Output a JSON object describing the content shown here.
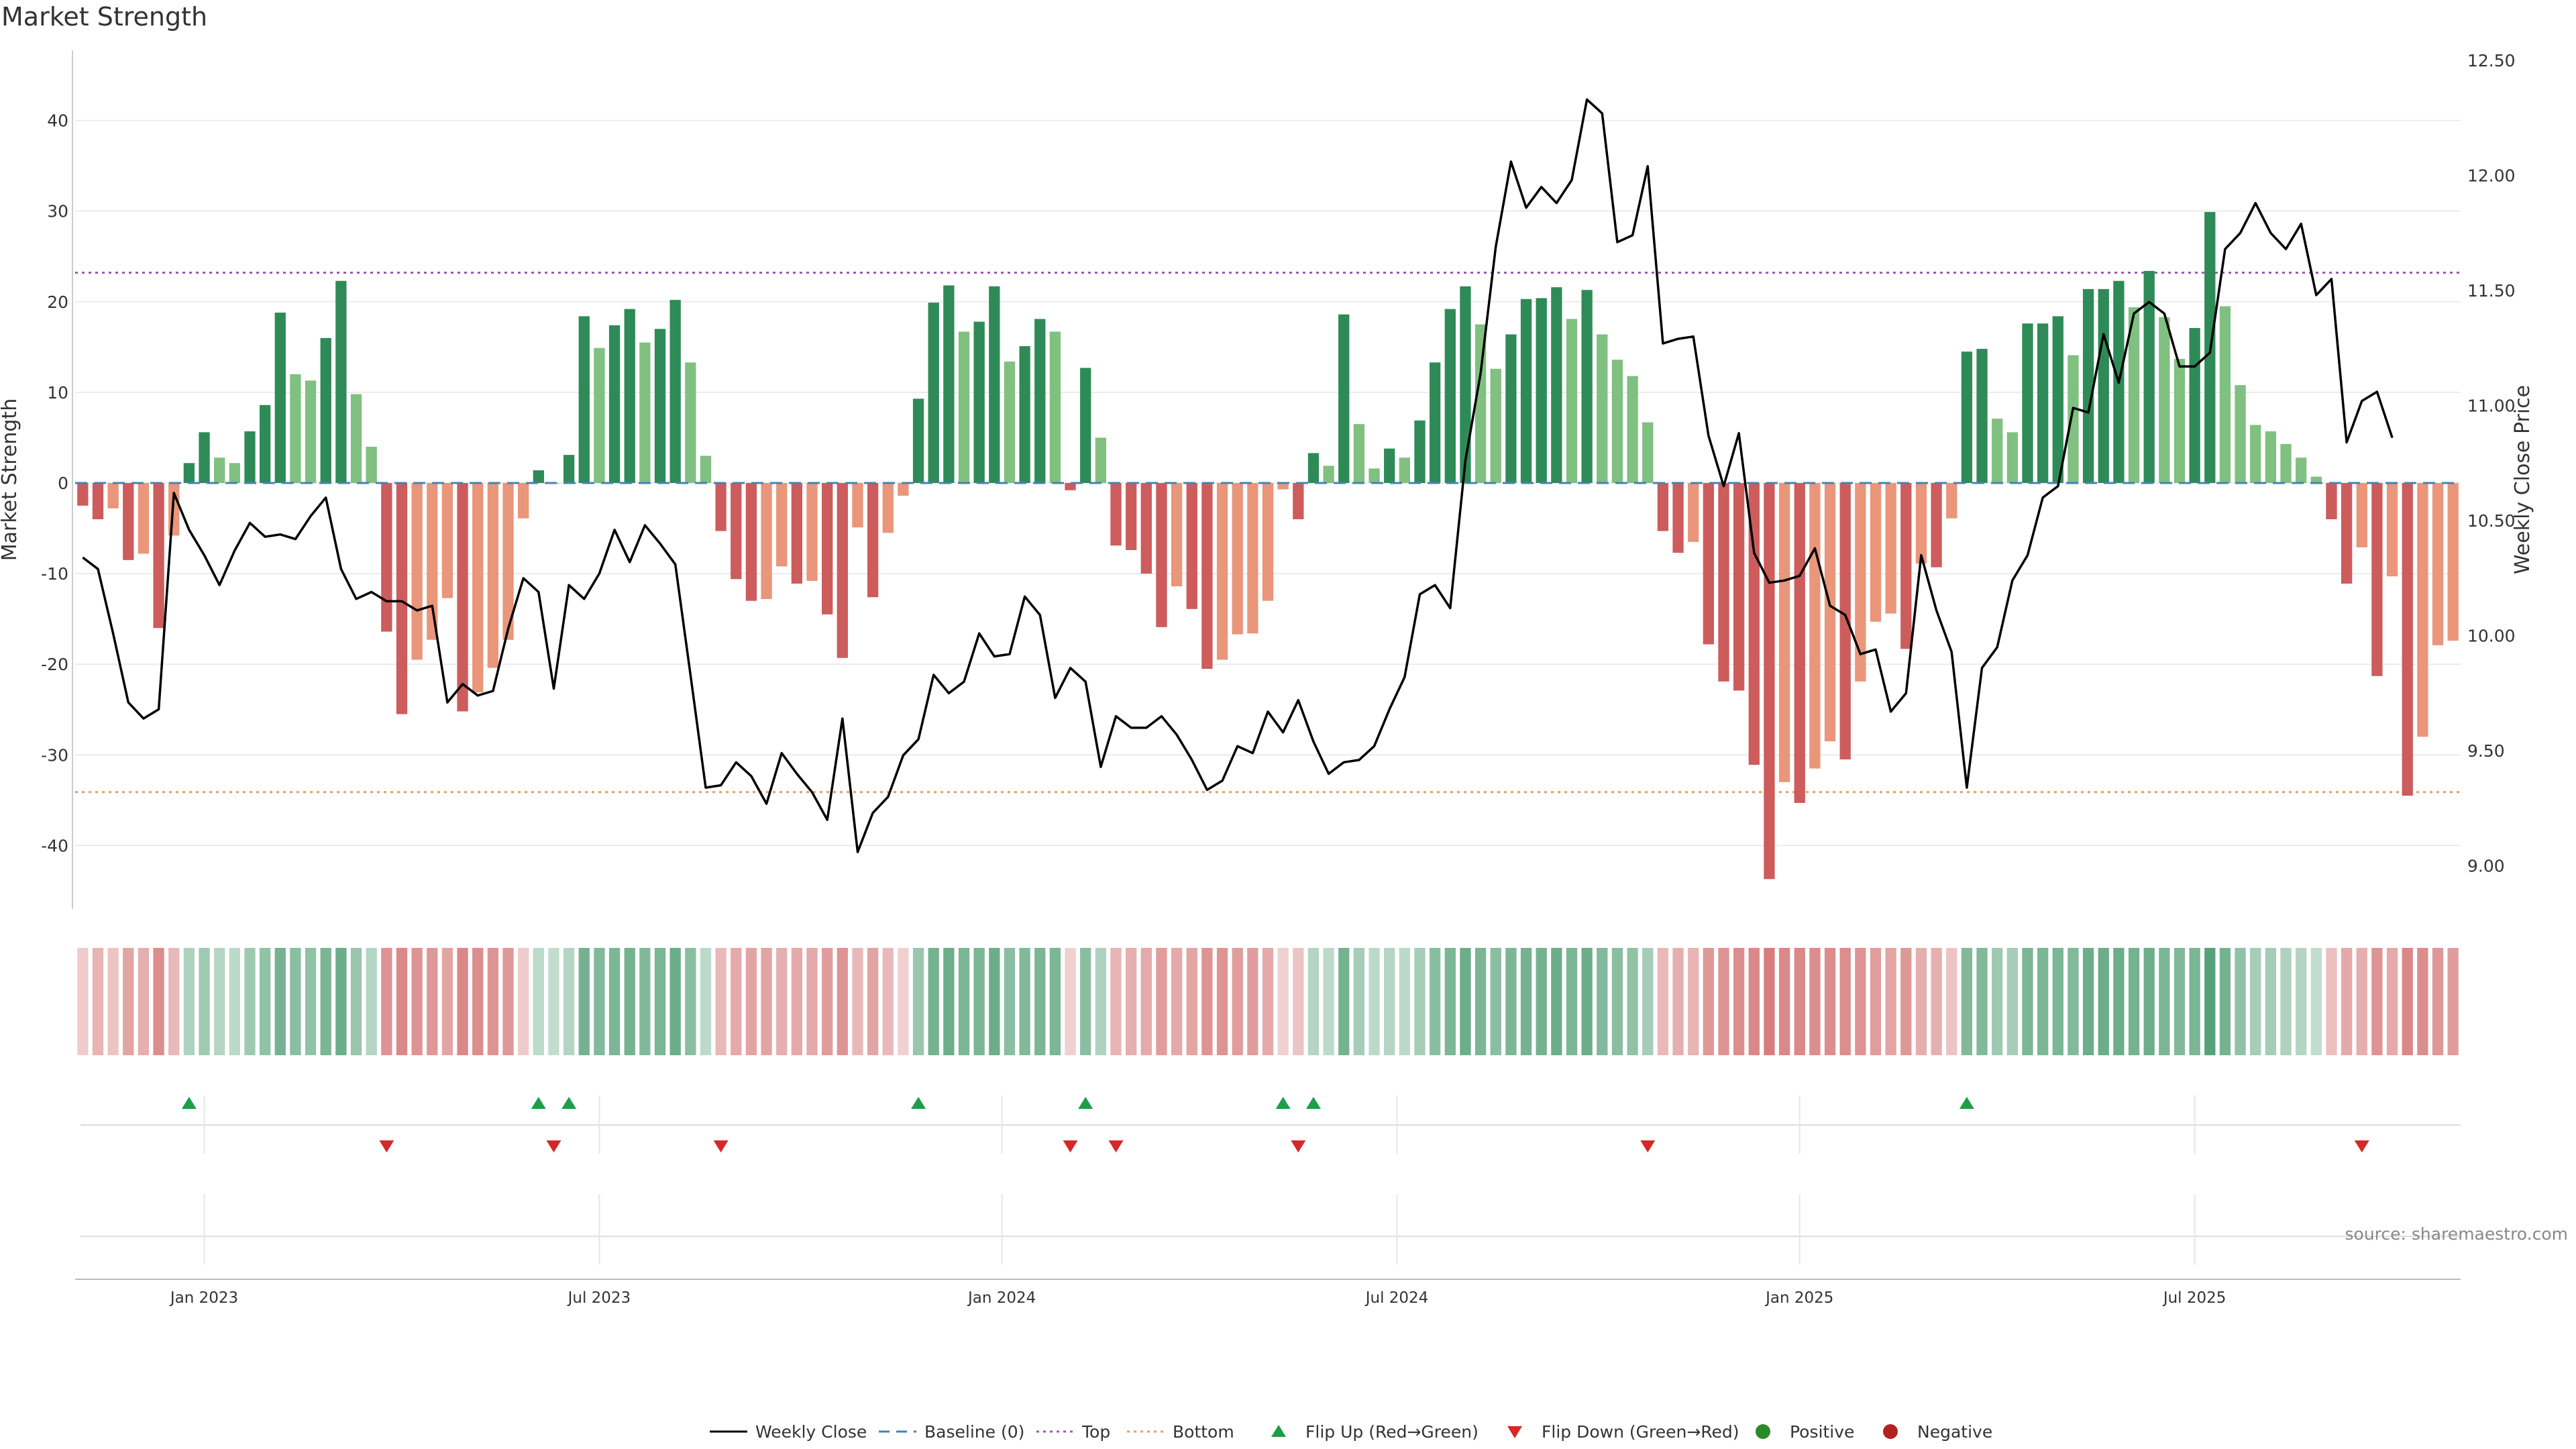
{
  "chart_data": {
    "type": "bar",
    "title": "Market Strength",
    "ylabel": "Market Strength",
    "ylabel_right": "Weekly Close Price",
    "ylim": [
      -47,
      47
    ],
    "ylim_right": [
      8.9,
      12.5
    ],
    "yticks": [
      40,
      30,
      20,
      10,
      0,
      -10,
      -20,
      -30,
      -40
    ],
    "yticks_right": [
      12.5,
      12.0,
      11.5,
      11.0,
      10.5,
      10.0,
      9.5,
      9.0
    ],
    "ytick_labels_right": [
      "12.50",
      "12.00",
      "11.50",
      "11.00",
      "10.50",
      "10.00",
      "9.50",
      "9.00"
    ],
    "top_threshold": 23.2,
    "bottom_threshold": -34.1,
    "x_ticks": [
      {
        "label": "Jan 2023",
        "week": 8.5
      },
      {
        "label": "Jul 2023",
        "week": 34.5
      },
      {
        "label": "Jan 2024",
        "week": 61
      },
      {
        "label": "Jul 2024",
        "week": 87
      },
      {
        "label": "Jan 2025",
        "week": 113.5
      },
      {
        "label": "Jul 2025",
        "week": 139.5
      }
    ],
    "strength_values": [
      -2.5,
      -4,
      -2.8,
      -8.5,
      -7.8,
      -16,
      -5.8,
      2.2,
      5.6,
      2.8,
      2.2,
      5.7,
      8.6,
      18.8,
      12,
      11.3,
      16,
      22.3,
      9.8,
      4,
      -16.4,
      -25.5,
      -19.5,
      -17.3,
      -12.7,
      -25.2,
      -23.1,
      -20.4,
      -17.3,
      -3.9,
      1.4,
      0,
      3.1,
      18.4,
      14.9,
      17.4,
      19.2,
      15.5,
      17,
      20.2,
      13.3,
      3,
      -5.3,
      -10.6,
      -13,
      -12.8,
      -9.2,
      -11.1,
      -10.8,
      -14.5,
      -19.3,
      -4.9,
      -12.6,
      -5.5,
      -1.4,
      9.3,
      19.9,
      21.8,
      16.7,
      17.8,
      21.7,
      13.4,
      15.1,
      18.1,
      16.7,
      -0.8,
      12.7,
      5,
      -6.9,
      -7.4,
      -10,
      -15.9,
      -11.4,
      -13.9,
      -20.5,
      -19.5,
      -16.7,
      -16.6,
      -13,
      -0.7,
      -4,
      3.3,
      1.9,
      18.6,
      6.5,
      1.6,
      3.8,
      2.8,
      6.9,
      13.3,
      19.2,
      21.7,
      17.5,
      12.6,
      16.4,
      20.3,
      20.4,
      21.6,
      18.1,
      21.3,
      16.4,
      13.6,
      11.8,
      6.7,
      -5.3,
      -7.7,
      -6.5,
      -17.8,
      -21.9,
      -22.9,
      -31.1,
      -43.7,
      -33,
      -35.3,
      -31.5,
      -28.5,
      -30.5,
      -21.9,
      -15.3,
      -14.4,
      -18.3,
      -8.9,
      -9.3,
      -3.9,
      14.5,
      14.8,
      7.1,
      5.6,
      17.6,
      17.6,
      18.4,
      14.1,
      21.4,
      21.4,
      22.3,
      19.4,
      23.4,
      18.3,
      13.7,
      17.1,
      29.9,
      19.5,
      10.8,
      6.4,
      5.7,
      4.3,
      2.8,
      0.7,
      -4,
      -11.1,
      -7.1,
      -21.3,
      -10.3,
      -34.5,
      -28,
      -17.9,
      -17.4
    ],
    "close_prices": [
      10.34,
      10.29,
      10.01,
      9.71,
      9.64,
      9.68,
      10.62,
      10.46,
      10.35,
      10.22,
      10.37,
      10.49,
      10.43,
      10.44,
      10.42,
      10.52,
      10.6,
      10.29,
      10.16,
      10.19,
      10.15,
      10.15,
      10.11,
      10.13,
      9.71,
      9.79,
      9.74,
      9.76,
      10.03,
      10.25,
      10.19,
      9.77,
      10.22,
      10.16,
      10.27,
      10.46,
      10.32,
      10.48,
      10.4,
      10.31,
      9.83,
      9.34,
      9.35,
      9.45,
      9.39,
      9.27,
      9.49,
      9.4,
      9.32,
      9.2,
      9.64,
      9.06,
      9.23,
      9.3,
      9.48,
      9.55,
      9.83,
      9.75,
      9.8,
      10.01,
      9.91,
      9.92,
      10.17,
      10.09,
      9.73,
      9.86,
      9.8,
      9.43,
      9.65,
      9.6,
      9.6,
      9.65,
      9.57,
      9.46,
      9.33,
      9.37,
      9.52,
      9.49,
      9.67,
      9.58,
      9.72,
      9.54,
      9.4,
      9.45,
      9.46,
      9.52,
      9.68,
      9.82,
      10.18,
      10.22,
      10.12,
      10.76,
      11.14,
      11.69,
      12.06,
      11.86,
      11.95,
      11.88,
      11.98,
      12.33,
      12.27,
      11.71,
      11.74,
      12.04,
      11.27,
      11.29,
      11.3,
      10.87,
      10.65,
      10.88,
      10.36,
      10.23,
      10.24,
      10.26,
      10.38,
      10.13,
      10.09,
      9.92,
      9.94,
      9.67,
      9.75,
      10.35,
      10.11,
      9.93,
      9.34,
      9.86,
      9.95,
      10.24,
      10.35,
      10.6,
      10.65,
      10.99,
      10.97,
      11.31,
      11.1,
      11.4,
      11.45,
      11.4,
      11.17,
      11.17,
      11.23,
      11.68,
      11.75,
      11.88,
      11.75,
      11.68,
      11.79,
      11.48,
      11.55,
      10.84,
      11.02,
      11.06,
      10.86
    ],
    "heat_intensity": [
      0.3,
      0.5,
      0.35,
      0.65,
      0.55,
      0.85,
      0.45,
      0.4,
      0.5,
      0.35,
      0.3,
      0.5,
      0.6,
      0.8,
      0.65,
      0.6,
      0.75,
      0.85,
      0.55,
      0.35,
      0.8,
      0.9,
      0.8,
      0.75,
      0.65,
      0.9,
      0.85,
      0.8,
      0.75,
      0.3,
      0.3,
      0.25,
      0.35,
      0.8,
      0.7,
      0.75,
      0.8,
      0.7,
      0.75,
      0.85,
      0.65,
      0.3,
      0.45,
      0.6,
      0.65,
      0.65,
      0.55,
      0.6,
      0.6,
      0.7,
      0.8,
      0.45,
      0.65,
      0.45,
      0.25,
      0.55,
      0.8,
      0.85,
      0.75,
      0.75,
      0.85,
      0.65,
      0.7,
      0.75,
      0.75,
      0.25,
      0.65,
      0.4,
      0.5,
      0.55,
      0.6,
      0.7,
      0.6,
      0.65,
      0.8,
      0.8,
      0.7,
      0.7,
      0.6,
      0.25,
      0.35,
      0.35,
      0.3,
      0.8,
      0.45,
      0.3,
      0.35,
      0.3,
      0.45,
      0.65,
      0.75,
      0.85,
      0.75,
      0.65,
      0.75,
      0.8,
      0.8,
      0.85,
      0.75,
      0.85,
      0.7,
      0.65,
      0.6,
      0.45,
      0.45,
      0.55,
      0.5,
      0.75,
      0.8,
      0.85,
      0.9,
      1,
      0.9,
      0.9,
      0.85,
      0.85,
      0.85,
      0.8,
      0.7,
      0.65,
      0.75,
      0.55,
      0.55,
      0.35,
      0.7,
      0.7,
      0.5,
      0.45,
      0.75,
      0.75,
      0.75,
      0.7,
      0.85,
      0.85,
      0.85,
      0.8,
      0.85,
      0.75,
      0.7,
      0.75,
      1,
      0.8,
      0.6,
      0.45,
      0.45,
      0.4,
      0.35,
      0.25,
      0.4,
      0.6,
      0.55,
      0.8,
      0.6,
      0.9,
      0.85,
      0.75,
      0.7
    ],
    "flip_up_weeks": [
      7,
      30,
      32,
      55,
      66,
      79,
      81,
      124
    ],
    "flip_down_weeks": [
      20,
      31,
      42,
      65,
      68,
      80,
      103,
      150
    ],
    "colors": {
      "strong_pos": "#2e8b57",
      "weak_pos": "#80c080",
      "strong_neg": "#cd5c5c",
      "weak_neg": "#e9967a",
      "close_line": "#000000",
      "baseline": "#4682b4",
      "top": "#9b59b6",
      "bottom": "#e0a060",
      "flip_up": "#1e9e4a",
      "flip_down": "#d62828",
      "positive": "#2a8a2a",
      "negative": "#b22222"
    },
    "legend": [
      {
        "label": "Weekly Close",
        "kind": "line"
      },
      {
        "label": "Baseline (0)",
        "kind": "dash"
      },
      {
        "label": "Top",
        "kind": "dot-top"
      },
      {
        "label": "Bottom",
        "kind": "dot-bottom"
      },
      {
        "label": "Flip Up (Red→Green)",
        "kind": "tri-up"
      },
      {
        "label": "Flip Down (Green→Red)",
        "kind": "tri-down"
      },
      {
        "label": "Positive",
        "kind": "circle-pos"
      },
      {
        "label": "Negative",
        "kind": "circle-neg"
      }
    ],
    "legend_placement": "bottom-center"
  },
  "source_note": "source: sharemaestro.com"
}
